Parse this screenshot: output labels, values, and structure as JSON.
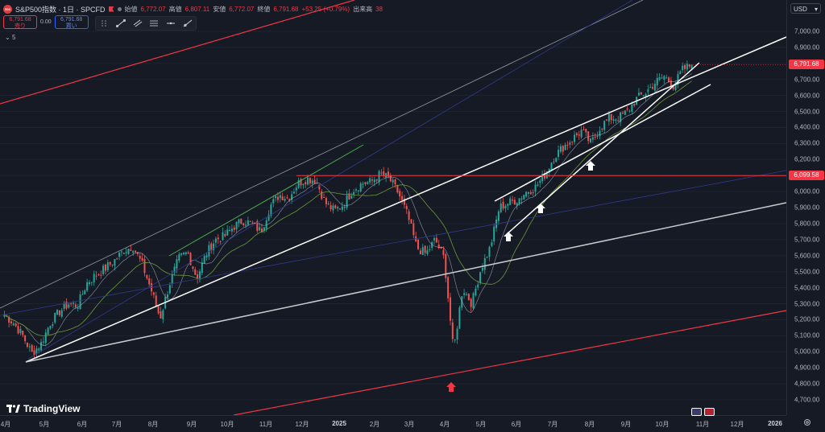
{
  "header": {
    "logo_text": "500",
    "symbol": "S&P500指数 · 1日 · SPCFD",
    "ohlc": [
      {
        "label": "始値",
        "value": "6,772.07"
      },
      {
        "label": "高値",
        "value": "6,807.11"
      },
      {
        "label": "安値",
        "value": "6,772.07"
      },
      {
        "label": "終値",
        "value": "6,791.68"
      }
    ],
    "change": "+53.25 (+0.79%)",
    "volume_label": "出来高",
    "volume_value": "38"
  },
  "trade": {
    "sell_price": "6,791.68",
    "sell_label": "売り",
    "spread": "0.00",
    "buy_price": "6,791.68",
    "buy_label": "買い"
  },
  "tools": [
    "trend-line-icon",
    "parallel-channel-icon",
    "fib-icon",
    "horizontal-lines-icon",
    "ray-icon",
    "line-icon"
  ],
  "collapse_label": "5",
  "currency": "USD",
  "brand": "TradingView",
  "colors": {
    "background": "#161a25",
    "up": "#26a69a",
    "down": "#ef5350",
    "red_line": "#f23645",
    "price_tag": "#f23645",
    "hline_tag": "#f23645"
  },
  "price_axis": {
    "min": 4600,
    "max": 7100,
    "ticks": [
      "7,000.00",
      "6,900.00",
      "6,800.00",
      "6,700.00",
      "6,600.00",
      "6,500.00",
      "6,400.00",
      "6,300.00",
      "6,200.00",
      "6,100.00",
      "6,000.00",
      "5,900.00",
      "5,800.00",
      "5,700.00",
      "5,600.00",
      "5,500.00",
      "5,400.00",
      "5,300.00",
      "5,200.00",
      "5,100.00",
      "5,000.00",
      "4,900.00",
      "4,800.00",
      "4,700.00"
    ],
    "last_price_tag": "6,791.68",
    "hline_tag": "6,099.58"
  },
  "time_axis": {
    "labels": [
      {
        "text": "4月",
        "bold": false
      },
      {
        "text": "5月",
        "bold": false
      },
      {
        "text": "6月",
        "bold": false
      },
      {
        "text": "7月",
        "bold": false
      },
      {
        "text": "8月",
        "bold": false
      },
      {
        "text": "9月",
        "bold": false
      },
      {
        "text": "10月",
        "bold": false
      },
      {
        "text": "11月",
        "bold": false
      },
      {
        "text": "12月",
        "bold": false
      },
      {
        "text": "2025",
        "bold": true
      },
      {
        "text": "2月",
        "bold": false
      },
      {
        "text": "3月",
        "bold": false
      },
      {
        "text": "4月",
        "bold": false
      },
      {
        "text": "5月",
        "bold": false
      },
      {
        "text": "6月",
        "bold": false
      },
      {
        "text": "7月",
        "bold": false
      },
      {
        "text": "8月",
        "bold": false
      },
      {
        "text": "9月",
        "bold": false
      },
      {
        "text": "10月",
        "bold": false
      },
      {
        "text": "11月",
        "bold": false
      },
      {
        "text": "12月",
        "bold": false
      },
      {
        "text": "2026",
        "bold": true
      }
    ]
  },
  "chart_data": {
    "type": "candlestick",
    "symbol": "S&P500指数 · 1日 · SPCFD",
    "ylim": [
      4600,
      7100
    ],
    "close_path": [
      [
        "4月",
        5230
      ],
      [
        "",
        5180
      ],
      [
        "",
        5100
      ],
      [
        "",
        4990
      ],
      [
        "5月",
        5050
      ],
      [
        "",
        5180
      ],
      [
        "",
        5250
      ],
      [
        "",
        5300
      ],
      [
        "6月",
        5290
      ],
      [
        "",
        5430
      ],
      [
        "",
        5480
      ],
      [
        "",
        5520
      ],
      [
        "7月",
        5570
      ],
      [
        "",
        5630
      ],
      [
        "",
        5660
      ],
      [
        "",
        5550
      ],
      [
        "8月",
        5390
      ],
      [
        "",
        5210
      ],
      [
        "",
        5420
      ],
      [
        "",
        5580
      ],
      [
        "9月",
        5620
      ],
      [
        "",
        5460
      ],
      [
        "",
        5610
      ],
      [
        "",
        5700
      ],
      [
        "10月",
        5720
      ],
      [
        "",
        5780
      ],
      [
        "",
        5820
      ],
      [
        "",
        5800
      ],
      [
        "11月",
        5750
      ],
      [
        "",
        5910
      ],
      [
        "",
        5980
      ],
      [
        "",
        5960
      ],
      [
        "12月",
        6050
      ],
      [
        "",
        6080
      ],
      [
        "",
        6070
      ],
      [
        "",
        5930
      ],
      [
        "2025",
        5880
      ],
      [
        "",
        5920
      ],
      [
        "",
        6010
      ],
      [
        "",
        6050
      ],
      [
        "2月",
        6060
      ],
      [
        "",
        6110
      ],
      [
        "",
        6080
      ],
      [
        "",
        5990
      ],
      [
        "3月",
        5850
      ],
      [
        "",
        5650
      ],
      [
        "",
        5610
      ],
      [
        "",
        5700
      ],
      [
        "4月",
        5580
      ],
      [
        "",
        5000
      ],
      [
        "",
        5400
      ],
      [
        "",
        5300
      ],
      [
        "5月",
        5520
      ],
      [
        "",
        5650
      ],
      [
        "",
        5900
      ],
      [
        "",
        5930
      ],
      [
        "6月",
        5950
      ],
      [
        "",
        6000
      ],
      [
        "",
        6030
      ],
      [
        "",
        6110
      ],
      [
        "7月",
        6220
      ],
      [
        "",
        6280
      ],
      [
        "",
        6330
      ],
      [
        "",
        6380
      ],
      [
        "8月",
        6300
      ],
      [
        "",
        6400
      ],
      [
        "",
        6460
      ],
      [
        "",
        6460
      ],
      [
        "9月",
        6500
      ],
      [
        "",
        6580
      ],
      [
        "",
        6620
      ],
      [
        "",
        6680
      ],
      [
        "10月",
        6720
      ],
      [
        "",
        6660
      ],
      [
        "",
        6760
      ],
      [
        "",
        6791.68
      ]
    ],
    "horizontal_line": 6099.58,
    "annotations": [
      "white-arrow-up",
      "white-arrow-up",
      "white-arrow-up",
      "red-arrow-up"
    ]
  }
}
